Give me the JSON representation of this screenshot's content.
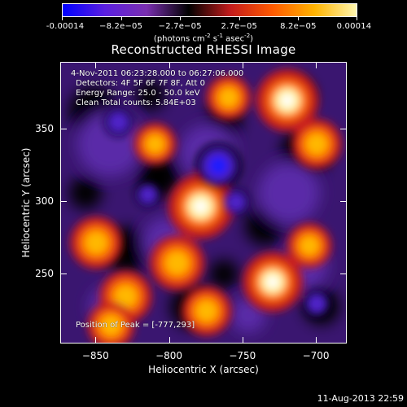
{
  "colorbar": {
    "units_prefix": "(photons cm",
    "units_exp1": "-2",
    "units_mid": " s",
    "units_exp2": "-1",
    "units_asec": " asec",
    "units_exp3": "-2",
    "units_suffix": ")",
    "ticks": [
      "-0.00014",
      "−8.2e−05",
      "−2.7e−05",
      "2.7e−05",
      "8.2e−05",
      "0.00014"
    ],
    "stops": [
      "#0000ff",
      "#5a1fe0",
      "#7a2fb0",
      "#000000",
      "#c41c1c",
      "#ff5a00",
      "#ffb400",
      "#fff7b0"
    ]
  },
  "title": "Reconstructed RHESSI Image",
  "info": {
    "time_range": "4-Nov-2011 06:23:28.000 to 06:27:06.000",
    "detectors": "Detectors: 4F 5F 6F 7F 8F, Att 0",
    "energy": "Energy Range: 25.0 - 50.0 keV",
    "clean": "Clean    Total counts: 5.84E+03",
    "peak": "Position of Peak = [-777,293]"
  },
  "chart_data": {
    "type": "heatmap",
    "title": "Reconstructed RHESSI Image",
    "xlabel": "Heliocentric X (arcsec)",
    "ylabel": "Heliocentric Y (arcsec)",
    "xlim": [
      -874,
      -679
    ],
    "ylim": [
      202,
      396
    ],
    "xticks": [
      "-850",
      "-800",
      "-750",
      "-700"
    ],
    "xtick_values": [
      -850,
      -800,
      -750,
      -700
    ],
    "yticks": [
      "250",
      "300",
      "350"
    ],
    "ytick_values": [
      250,
      300,
      350
    ],
    "colorbar_range": [
      -0.00014,
      0.00014
    ],
    "peak": [
      -777,
      293
    ],
    "bright_sources": [
      {
        "x": -779,
        "y": 297,
        "value": 0.00014
      },
      {
        "x": -720,
        "y": 370,
        "value": 0.00013
      },
      {
        "x": -730,
        "y": 245,
        "value": 0.00012
      },
      {
        "x": -795,
        "y": 258,
        "value": 0.0001
      },
      {
        "x": -850,
        "y": 272,
        "value": 9e-05
      },
      {
        "x": -830,
        "y": 235,
        "value": 9e-05
      },
      {
        "x": -775,
        "y": 225,
        "value": 8e-05
      },
      {
        "x": -700,
        "y": 340,
        "value": 8e-05
      },
      {
        "x": -760,
        "y": 372,
        "value": 6e-05
      },
      {
        "x": -810,
        "y": 340,
        "value": 5e-05
      },
      {
        "x": -840,
        "y": 215,
        "value": 7e-05
      },
      {
        "x": -705,
        "y": 270,
        "value": 6e-05
      }
    ],
    "dark_sources": [
      {
        "x": -767,
        "y": 325,
        "value": -0.00014
      },
      {
        "x": -835,
        "y": 355,
        "value": -6e-05
      },
      {
        "x": -755,
        "y": 300,
        "value": -5e-05
      },
      {
        "x": -700,
        "y": 230,
        "value": -5e-05
      },
      {
        "x": -815,
        "y": 305,
        "value": -4e-05
      }
    ]
  },
  "footer": {
    "timestamp": "11-Aug-2013 22:59"
  }
}
